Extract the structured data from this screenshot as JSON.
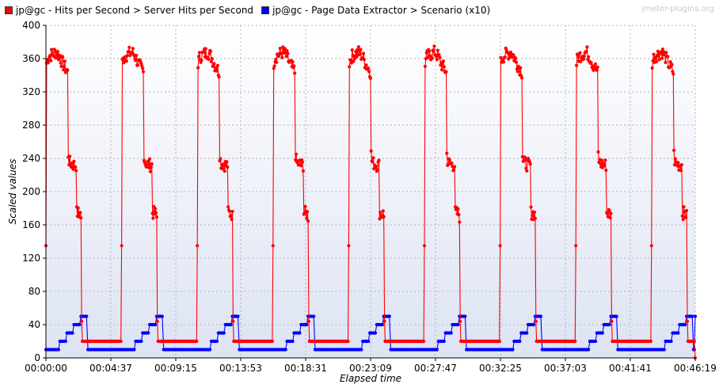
{
  "watermark": "jmeter-plugins.org",
  "chart_data": {
    "type": "line",
    "xlabel": "Elapsed time",
    "ylabel": "Scaled values",
    "ylim": [
      0,
      400
    ],
    "xlim": [
      0,
      2779
    ],
    "grid": true,
    "legend_position": "top-left",
    "y_ticks": [
      "0",
      "40",
      "80",
      "120",
      "160",
      "200",
      "240",
      "280",
      "320",
      "360",
      "400"
    ],
    "x_ticks": [
      "00:00:00",
      "00:04:37",
      "00:09:15",
      "00:13:53",
      "00:18:31",
      "00:23:09",
      "00:27:47",
      "00:32:25",
      "00:37:03",
      "00:41:41",
      "00:46:19"
    ],
    "cycle_seconds": 324,
    "cycle_offset_seconds": 0,
    "series": [
      {
        "name": "jp@gc - Hits per Second > Server Hits per Second",
        "color": "#ff0000",
        "cycle_profile": [
          {
            "t": 0,
            "y": 135
          },
          {
            "t": 3,
            "y": 355
          },
          {
            "t": 10,
            "y": 362
          },
          {
            "t": 25,
            "y": 365
          },
          {
            "t": 45,
            "y": 368
          },
          {
            "t": 60,
            "y": 362
          },
          {
            "t": 70,
            "y": 355
          },
          {
            "t": 80,
            "y": 350
          },
          {
            "t": 92,
            "y": 345
          },
          {
            "t": 95,
            "y": 340
          },
          {
            "t": 96,
            "y": 245
          },
          {
            "t": 100,
            "y": 235
          },
          {
            "t": 120,
            "y": 232
          },
          {
            "t": 129,
            "y": 232
          },
          {
            "t": 130,
            "y": 175
          },
          {
            "t": 148,
            "y": 173
          },
          {
            "t": 150,
            "y": 170
          },
          {
            "t": 152,
            "y": 68
          },
          {
            "t": 154,
            "y": 20
          },
          {
            "t": 168,
            "y": 20
          }
        ],
        "end_value": 0
      },
      {
        "name": "jp@gc - Page Data Extractor > Scenario (x10)",
        "color": "#0000ff",
        "cycle_profile": [
          {
            "t": 0,
            "y": 10
          },
          {
            "t": 54,
            "y": 10
          },
          {
            "t": 55,
            "y": 20
          },
          {
            "t": 84,
            "y": 20
          },
          {
            "t": 85,
            "y": 30
          },
          {
            "t": 114,
            "y": 30
          },
          {
            "t": 115,
            "y": 40
          },
          {
            "t": 144,
            "y": 40
          },
          {
            "t": 145,
            "y": 50
          },
          {
            "t": 174,
            "y": 50
          },
          {
            "t": 175,
            "y": 10
          }
        ],
        "end_value": 50
      }
    ]
  }
}
